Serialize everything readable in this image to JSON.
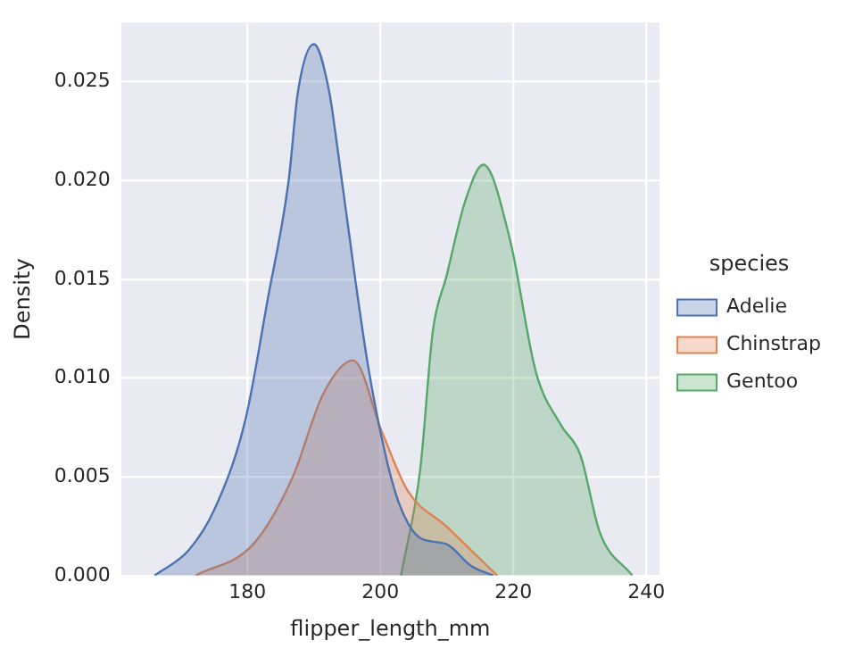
{
  "chart_data": {
    "type": "area",
    "xlabel": "flipper_length_mm",
    "ylabel": "Density",
    "legend_title": "species",
    "legend": "right",
    "grid": true,
    "xlim": [
      161,
      242
    ],
    "ylim": [
      0,
      0.028
    ],
    "xticks": [
      180,
      200,
      220,
      240
    ],
    "yticks": [
      {
        "value": 0,
        "label": "0.000"
      },
      {
        "value": 0.005,
        "label": "0.005"
      },
      {
        "value": 0.01,
        "label": "0.010"
      },
      {
        "value": 0.015,
        "label": "0.015"
      },
      {
        "value": 0.02,
        "label": "0.020"
      },
      {
        "value": 0.025,
        "label": "0.025"
      }
    ],
    "series": [
      {
        "name": "Adelie",
        "color": "#4c72b0",
        "x": [
          166,
          171.2,
          175.1,
          179.7,
          183,
          186.2,
          187.6,
          190,
          192.3,
          193.4,
          196.3,
          198.3,
          201.2,
          203.1,
          206,
          209.9,
          213.6,
          217
        ],
        "values": [
          0,
          0.0013,
          0.0034,
          0.0079,
          0.0139,
          0.02,
          0.0245,
          0.0269,
          0.0245,
          0.022,
          0.0148,
          0.0103,
          0.0055,
          0.0034,
          0.0019,
          0.0016,
          0.0005,
          0
        ]
      },
      {
        "name": "Chinstrap",
        "color": "#dd8452",
        "x": [
          172.2,
          180.9,
          186.7,
          191.4,
          195.9,
          200.2,
          204.1,
          209.9,
          213.6,
          217.6
        ],
        "values": [
          0,
          0.0016,
          0.0049,
          0.0092,
          0.0109,
          0.0073,
          0.0043,
          0.0025,
          0.0013,
          0
        ]
      },
      {
        "name": "Gentoo",
        "color": "#55a868",
        "x": [
          203.1,
          206,
          207.9,
          209.9,
          212.8,
          215.5,
          219.5,
          223.4,
          227.2,
          230.1,
          233,
          237.9
        ],
        "values": [
          0,
          0.0054,
          0.0124,
          0.0151,
          0.019,
          0.0208,
          0.017,
          0.0103,
          0.0076,
          0.0061,
          0.0022,
          0
        ]
      }
    ]
  }
}
